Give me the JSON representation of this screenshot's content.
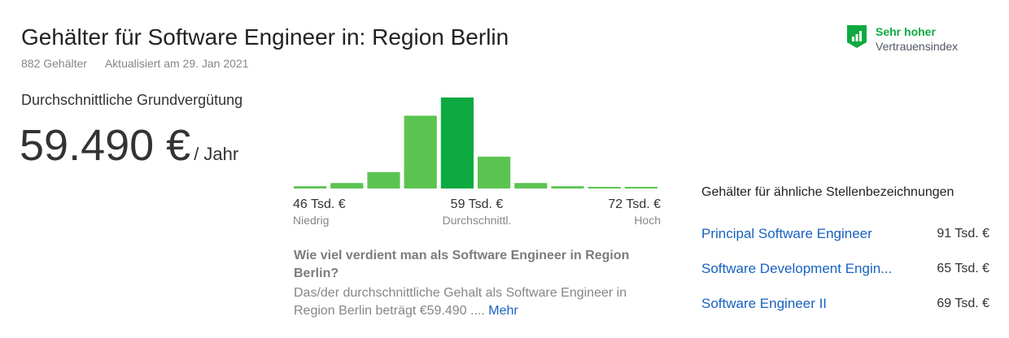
{
  "header": {
    "title": "Gehälter für Software Engineer in: Region Berlin",
    "salary_count": "882 Gehälter",
    "updated": "Aktualisiert am 29. Jan 2021"
  },
  "confidence": {
    "level": "Sehr hoher",
    "label": "Vertrauensindex",
    "color": "#0caa41",
    "icon": "bar-chart-shield-icon"
  },
  "average": {
    "label": "Durchschnittliche Grundvergütung",
    "amount": "59.490 €",
    "period": "/ Jahr"
  },
  "histogram": {
    "colors": {
      "normal": "#5bc451",
      "highlight": "#0caa41"
    },
    "low": {
      "value": "46 Tsd. €",
      "label": "Niedrig"
    },
    "mid": {
      "value": "59 Tsd. €",
      "label": "Durchschnittl."
    },
    "high": {
      "value": "72 Tsd. €",
      "label": "Hoch"
    }
  },
  "chart_data": {
    "type": "bar",
    "highlight_index": 4,
    "values": [
      2.5,
      6,
      18,
      80,
      100,
      35,
      6,
      2.5,
      1,
      1
    ],
    "xlabel": "",
    "ylabel": "",
    "ylim": [
      0,
      100
    ],
    "grid": false
  },
  "faq": {
    "question": "Wie viel verdient man als Software Engineer in Region Berlin?",
    "answer": "Das/der durchschnittliche Gehalt als Software Engineer in Region Berlin beträgt €59.490 ....",
    "more": "Mehr"
  },
  "similar": {
    "title": "Gehälter für ähnliche Stellenbezeichnungen",
    "items": [
      {
        "title": "Principal Software Engineer",
        "amount": "91 Tsd. €"
      },
      {
        "title": "Software Development Engin...",
        "amount": "65 Tsd. €"
      },
      {
        "title": "Software Engineer II",
        "amount": "69 Tsd. €"
      }
    ]
  }
}
